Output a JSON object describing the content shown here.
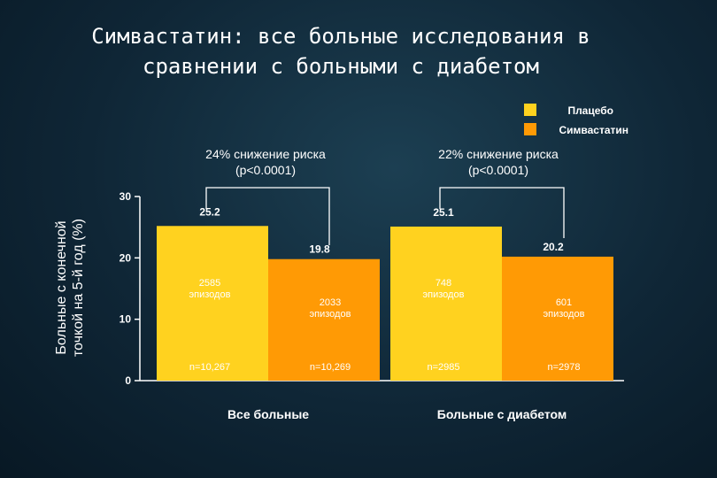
{
  "slide": {
    "title": "Симвастатин: все больные исследования в\nсравнении с больными с диабетом"
  },
  "colors": {
    "placebo": "#ffd21f",
    "simvastatin": "#ff9a05",
    "text": "#ffffff"
  },
  "chart_data": {
    "type": "bar",
    "title": "",
    "ylabel": "Больные с конечной точкой на 5-й год (%)",
    "ylabel_lines": [
      "Больные с конечной",
      "точкой на 5-й год (%)"
    ],
    "ylim": [
      0,
      30
    ],
    "yticks": [
      0,
      10,
      20,
      30
    ],
    "ytick_labels": [
      "0",
      "10",
      "20",
      "30"
    ],
    "categories": [
      "Все больные",
      "Больные с диабетом"
    ],
    "legend_position": "top-right",
    "series": [
      {
        "name": "Плацебо",
        "values": [
          25.2,
          25.1
        ],
        "value_labels": [
          "25.2",
          "25.1"
        ],
        "episodes": [
          "2585",
          "748"
        ],
        "n_labels": [
          "n=10,267",
          "n=2985"
        ]
      },
      {
        "name": "Симвастатин",
        "values": [
          19.8,
          20.2
        ],
        "value_labels": [
          "19.8",
          "20.2"
        ],
        "episodes": [
          "2033",
          "601"
        ],
        "n_labels": [
          "n=10,269",
          "n=2978"
        ]
      }
    ],
    "episodes_word": "эпизодов",
    "annotations": [
      {
        "line1": "24% снижение риска",
        "line2": "(p<0.0001)"
      },
      {
        "line1": "22% снижение риска",
        "line2": "(p<0.0001)"
      }
    ]
  }
}
